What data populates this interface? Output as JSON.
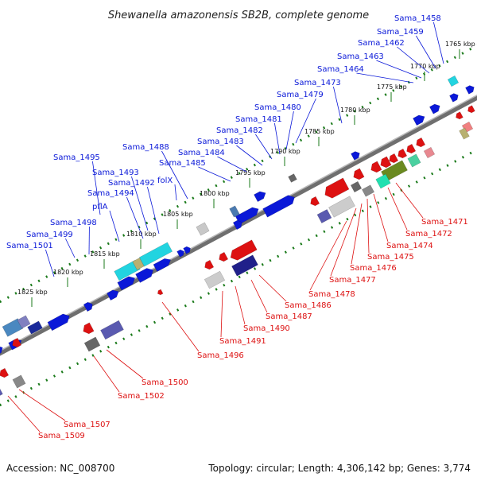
{
  "title": "Shewanella amazonensis SB2B, complete genome",
  "footer": {
    "accession": "Accession: NC_008700",
    "summary": "Topology: circular; Length: 4,306,142 bp; Genes: 3,774"
  },
  "colors": {
    "forward": "#0a18d8",
    "reverse": "#dd1111",
    "backbone": "#888888",
    "tick": "#1a7a1a"
  },
  "kbp_ticks": [
    {
      "label": "1765 kbp",
      "t": 0.03,
      "side": "upper"
    },
    {
      "label": "1770 kbp",
      "t": 0.09,
      "side": "upper"
    },
    {
      "label": "1775 kbp",
      "t": 0.15,
      "side": "upper"
    },
    {
      "label": "1780 kbp",
      "t": 0.27,
      "side": "upper"
    },
    {
      "label": "1785 kbp",
      "t": 0.35,
      "side": "upper"
    },
    {
      "label": "1790 kbp",
      "t": 0.43,
      "side": "upper"
    },
    {
      "label": "1795 kbp",
      "t": 0.52,
      "side": "upper"
    },
    {
      "label": "1800 kbp",
      "t": 0.6,
      "side": "upper"
    },
    {
      "label": "1805 kbp",
      "t": 0.68,
      "side": "upper"
    },
    {
      "label": "1810 kbp",
      "t": 0.76,
      "side": "upper"
    },
    {
      "label": "1815 kbp",
      "t": 0.84,
      "side": "upper"
    },
    {
      "label": "1820 kbp",
      "t": 0.9,
      "side": "upper"
    },
    {
      "label": "1825 kbp",
      "t": 0.98,
      "side": "upper"
    }
  ],
  "upper_labels": [
    "Sama_1458",
    "Sama_1459",
    "Sama_1462",
    "Sama_1463",
    "Sama_1464",
    "Sama_1473",
    "Sama_1479",
    "Sama_1480",
    "Sama_1481",
    "Sama_1482",
    "Sama_1483",
    "Sama_1484",
    "Sama_1485",
    "Sama_1488",
    "folX",
    "Sama_1495",
    "Sama_1493",
    "Sama_1492",
    "Sama_1494",
    "pflA",
    "Sama_1498",
    "Sama_1499",
    "Sama_1501"
  ],
  "lower_labels": [
    "Sama_1471",
    "Sama_1472",
    "Sama_1474",
    "Sama_1475",
    "Sama_1476",
    "Sama_1477",
    "Sama_1478",
    "Sama_1486",
    "Sama_1487",
    "Sama_1490",
    "Sama_1491",
    "Sama_1496",
    "Sama_1500",
    "Sama_1502",
    "Sama_1507",
    "Sama_1509"
  ]
}
